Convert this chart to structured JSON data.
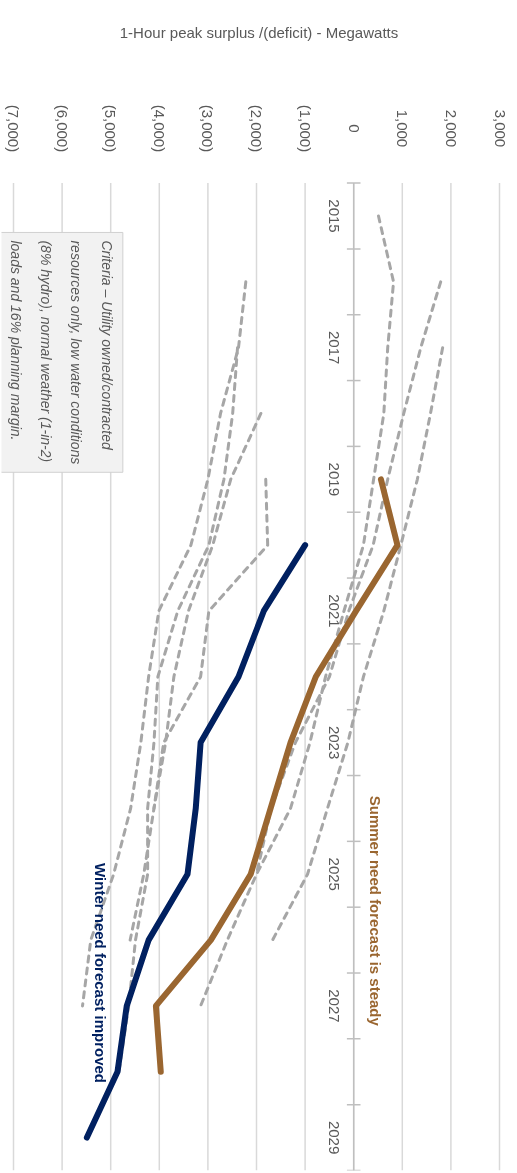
{
  "chart_data": {
    "type": "line",
    "orientation": "horizontal",
    "xlabel": "1-Hour peak surplus /(deficit) - Megawatts",
    "categories": [
      "2015",
      null,
      "2017",
      null,
      "2019",
      null,
      "2021",
      null,
      "2023",
      null,
      "2025",
      null,
      "2027",
      null,
      "2029"
    ],
    "xlim": [
      -7000,
      3000
    ],
    "xticks": [
      {
        "value": -7000,
        "label": "(7,000)"
      },
      {
        "value": -6000,
        "label": "(6,000)"
      },
      {
        "value": -5000,
        "label": "(5,000)"
      },
      {
        "value": -4000,
        "label": "(4,000)"
      },
      {
        "value": -3000,
        "label": "(3,000)"
      },
      {
        "value": -2000,
        "label": "(2,000)"
      },
      {
        "value": -1000,
        "label": "(1,000)"
      },
      {
        "value": 0,
        "label": "0"
      },
      {
        "value": 1000,
        "label": "1,000"
      },
      {
        "value": 2000,
        "label": "2,000"
      },
      {
        "value": 3000,
        "label": "3,000"
      }
    ],
    "grid": "x",
    "series": [
      {
        "color": "#a6a6a6",
        "line_style": "dashed",
        "values": [
          510,
          820,
          700,
          620,
          410,
          200,
          -200,
          -580,
          -900,
          -1300,
          -2000,
          -2600,
          -3150,
          null,
          null
        ]
      },
      {
        "color": "#a6a6a6",
        "line_style": "dashed",
        "values": [
          null,
          1790,
          1380,
          1030,
          700,
          400,
          -100,
          -500,
          -1200,
          -1700,
          -2000,
          null,
          null,
          null,
          null
        ]
      },
      {
        "color": "#a6a6a6",
        "line_style": "dashed",
        "values": [
          null,
          null,
          1830,
          1580,
          1310,
          970,
          620,
          200,
          -120,
          -540,
          -950,
          -1670,
          null,
          null,
          null
        ]
      },
      {
        "color": "#a6a6a6",
        "line_style": "dashed",
        "values": [
          null,
          -2220,
          -2370,
          -2740,
          -3000,
          -3350,
          -4010,
          -4220,
          -4380,
          -4590,
          -4940,
          -5410,
          -5580,
          null,
          null
        ]
      },
      {
        "color": "#a6a6a6",
        "line_style": "dashed",
        "values": [
          null,
          null,
          -2390,
          -2490,
          -2670,
          -2980,
          -3620,
          -4030,
          -4110,
          -4240,
          -4240,
          -4490,
          -4630,
          -4830,
          null
        ]
      },
      {
        "color": "#a6a6a6",
        "line_style": "dashed",
        "values": [
          null,
          null,
          null,
          -1910,
          -2530,
          -2900,
          -3400,
          -3700,
          -3870,
          -4110,
          -4320,
          -4600,
          null,
          null,
          null
        ]
      },
      {
        "color": "#a6a6a6",
        "line_style": "dashed",
        "values": [
          null,
          null,
          null,
          null,
          -1810,
          -1770,
          -2980,
          -3150,
          -3910,
          -4110,
          null,
          null,
          null,
          null,
          null
        ]
      },
      {
        "name": "Summer need forecast is steady",
        "color": "#9a6630",
        "line_style": "solid",
        "values": [
          null,
          null,
          null,
          null,
          560,
          900,
          50,
          -780,
          -1300,
          -1710,
          -2120,
          -2940,
          -4070,
          -3970,
          null
        ]
      },
      {
        "name": "Winter need forecast improved",
        "color": "#002060",
        "line_style": "solid",
        "values": [
          null,
          null,
          null,
          null,
          null,
          -1000,
          -1850,
          -2370,
          -3150,
          -3250,
          -3420,
          -4220,
          -4670,
          -4860,
          -5490
        ]
      }
    ],
    "annotations": [
      "Criteria – Utility owned/contracted resources only, low water conditions (8% hydro), normal weather (1-in-2) loads and 16% planning margin."
    ]
  }
}
